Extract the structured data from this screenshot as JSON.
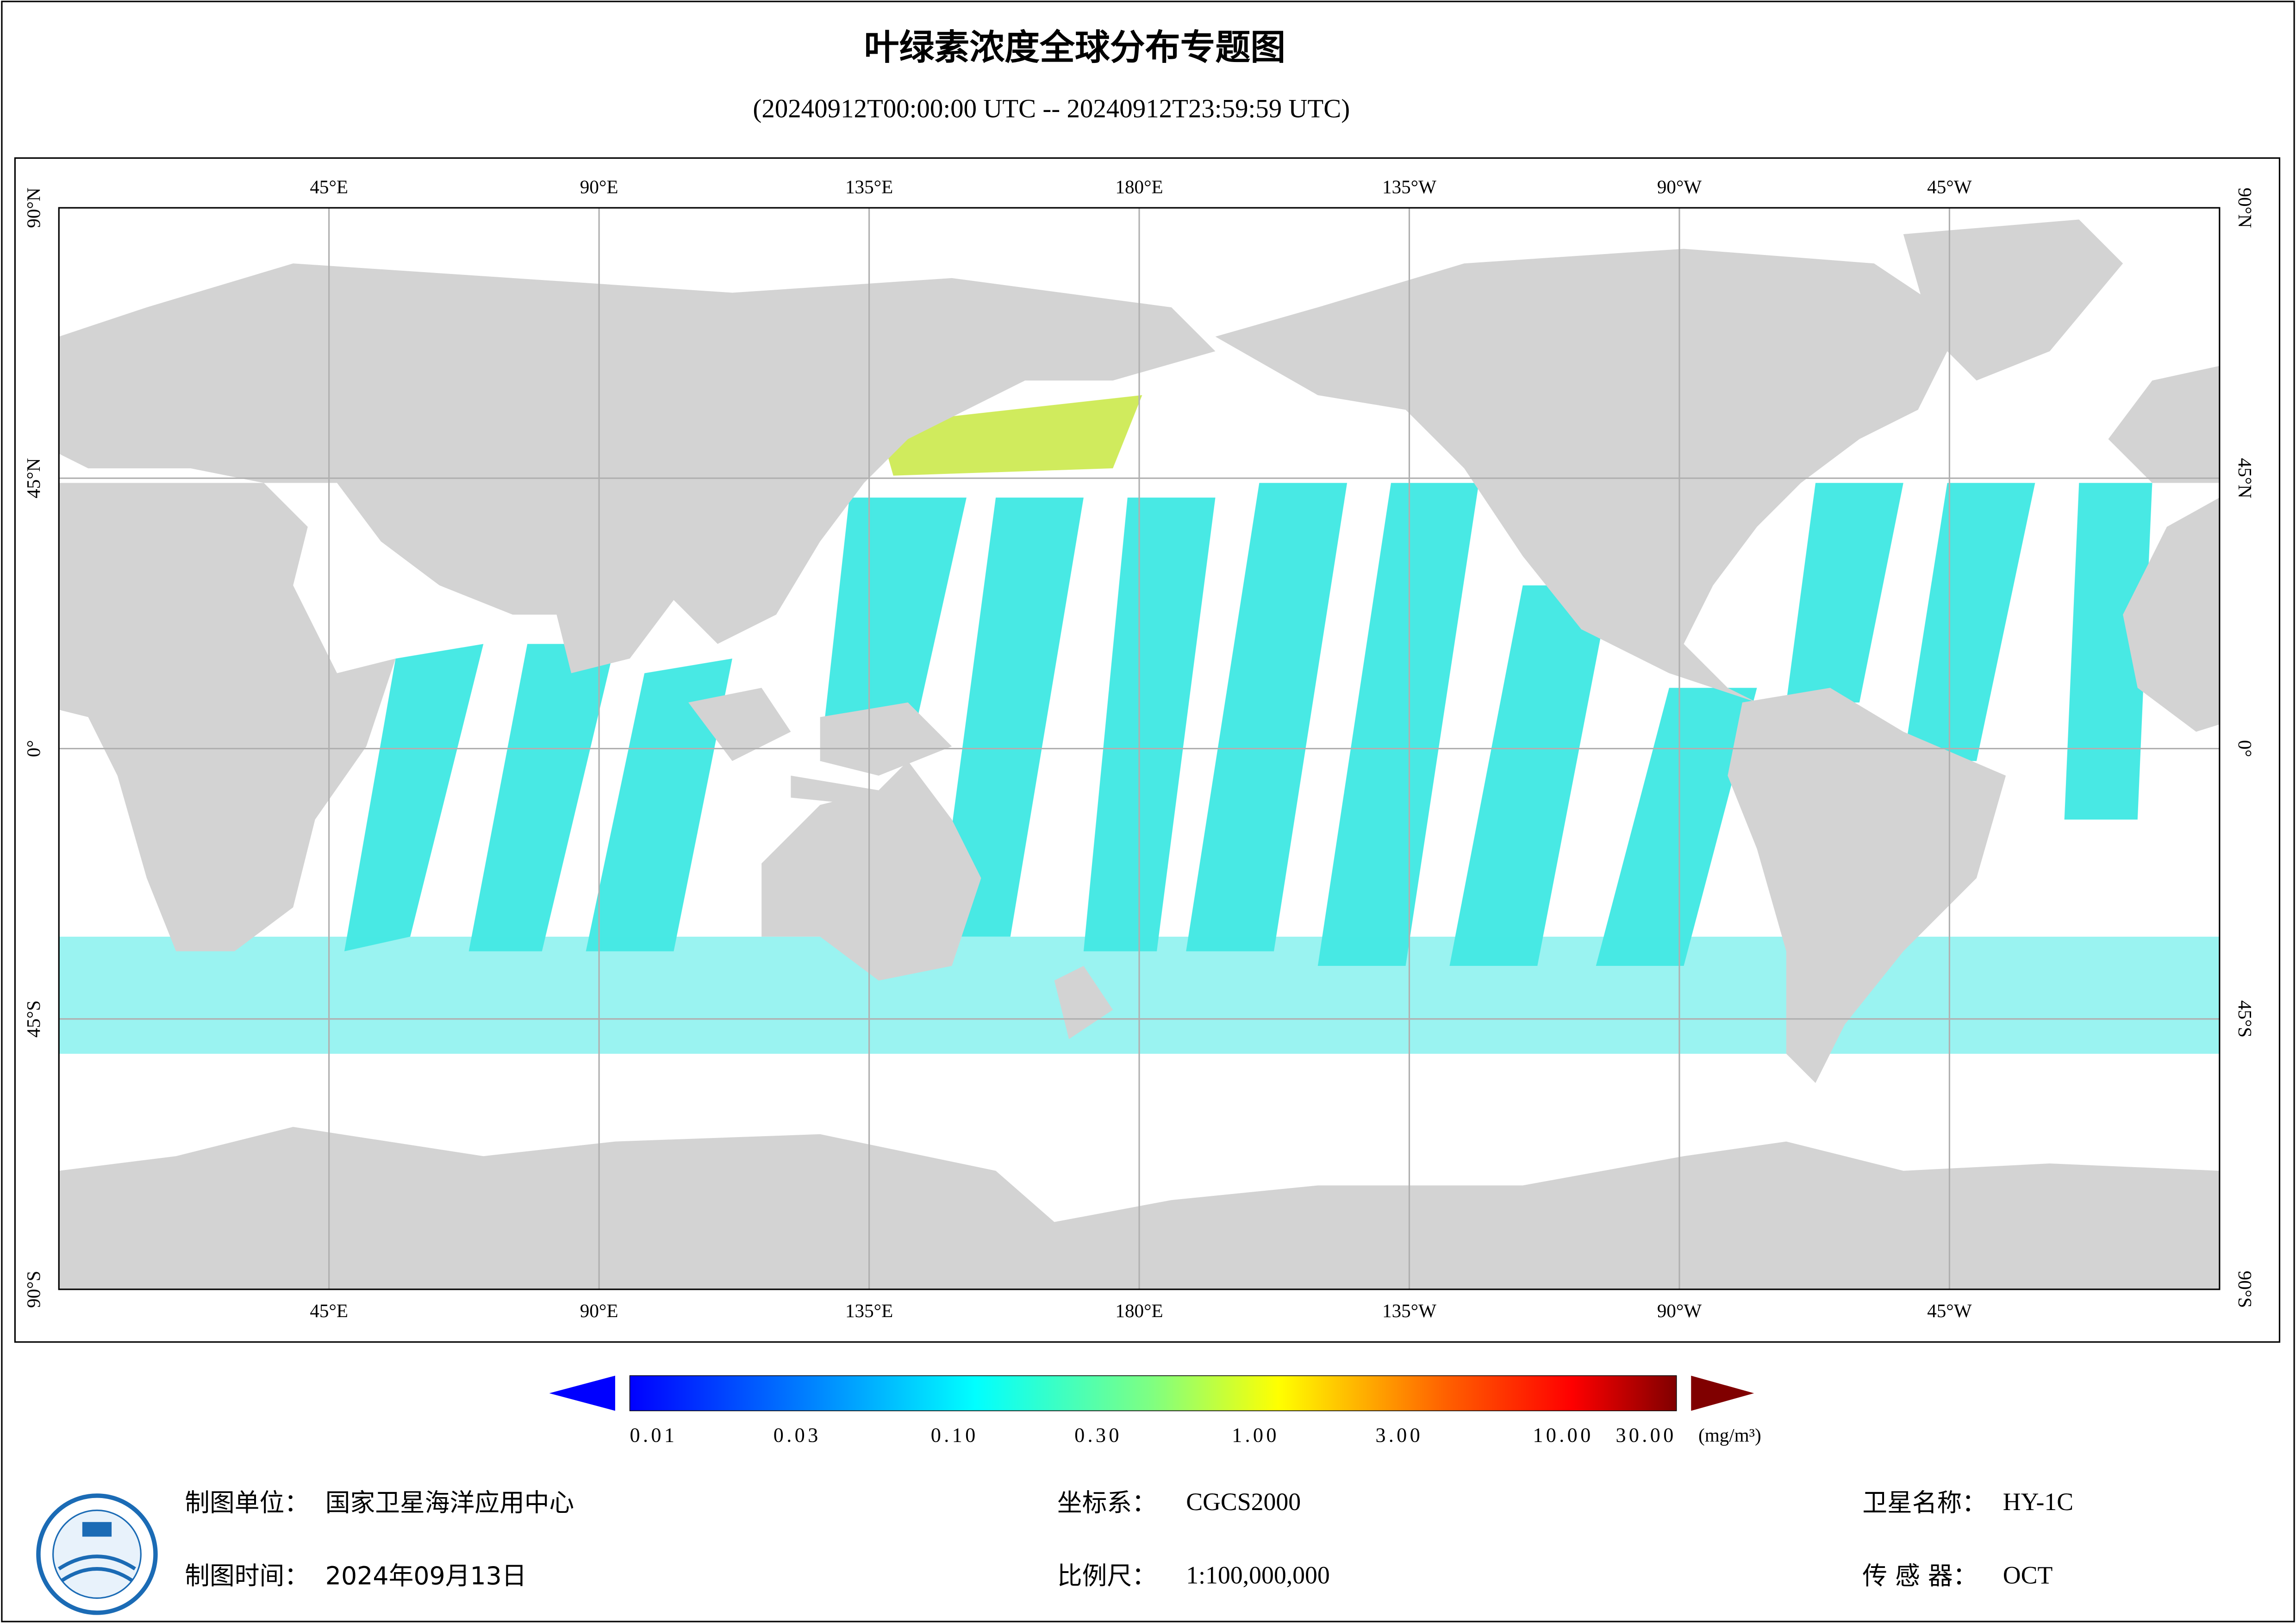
{
  "header": {
    "title": "叶绿素浓度全球分布专题图",
    "subtitle": "(20240912T00:00:00 UTC -- 20240912T23:59:59 UTC)"
  },
  "map": {
    "lon_labels": [
      "45°E",
      "90°E",
      "135°E",
      "180°E",
      "135°W",
      "90°W",
      "45°W"
    ],
    "lat_labels": [
      "90°N",
      "45°N",
      "0°",
      "45°S",
      "90°S"
    ]
  },
  "colorbar": {
    "lim": [
      0.01,
      30
    ],
    "log": true,
    "ticks": [
      {
        "value": 0.01,
        "label": "0.01"
      },
      {
        "value": 0.03,
        "label": "0.03"
      },
      {
        "value": 0.1,
        "label": "0.10"
      },
      {
        "value": 0.3,
        "label": "0.30"
      },
      {
        "value": 1,
        "label": "1.00"
      },
      {
        "value": 3,
        "label": "3.00"
      },
      {
        "value": 10,
        "label": "10.00"
      },
      {
        "value": 30,
        "label": "30.00"
      }
    ],
    "unit": "(mg/m³)"
  },
  "footer": {
    "unit_label": "制图单位：",
    "unit_value": "国家卫星海洋应用中心",
    "time_label": "制图时间：",
    "time_value": "2024年09月13日",
    "crs_label": "坐标系：",
    "crs_value": "CGCS2000",
    "scale_label": "比例尺：",
    "scale_value": "1:100,000,000",
    "sat_label": "卫星名称：",
    "sat_value": "HY-1C",
    "sensor_label": "传 感 器：",
    "sensor_value": "OCT"
  }
}
